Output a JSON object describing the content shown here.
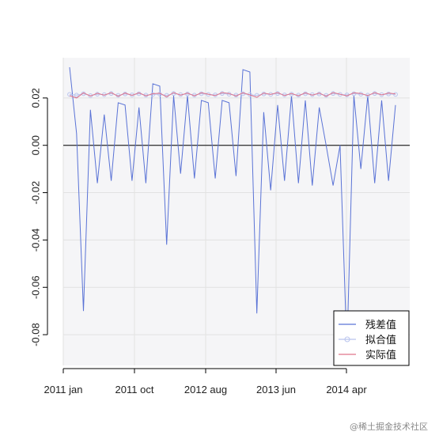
{
  "chart_data": {
    "type": "line",
    "title": "",
    "xlabel": "",
    "ylabel": "",
    "x_tick_labels": [
      "2011 jan",
      "2011 oct",
      "2012 aug",
      "2013 jun",
      "2014 apr"
    ],
    "y_ticks": [
      0.02,
      0.0,
      -0.02,
      -0.04,
      -0.06,
      -0.08
    ],
    "y_tick_labels": [
      "0.02",
      "0.00",
      "-0.02",
      "-0.04",
      "-0.06",
      "-0.08"
    ],
    "ylim": [
      -0.093,
      0.037
    ],
    "x_index_range": [
      0,
      47
    ],
    "grid": true,
    "zero_line": true,
    "legend_position": "bottom-right",
    "series": [
      {
        "name": "残差值",
        "color": "#5a73d6",
        "values": [
          0.033,
          0.005,
          -0.07,
          0.015,
          -0.016,
          0.013,
          -0.015,
          0.018,
          0.017,
          -0.015,
          0.016,
          -0.016,
          0.026,
          0.025,
          -0.042,
          0.021,
          -0.012,
          0.021,
          -0.014,
          0.019,
          0.018,
          -0.014,
          0.019,
          0.018,
          -0.013,
          0.032,
          0.031,
          -0.071,
          0.014,
          -0.019,
          0.017,
          -0.015,
          0.021,
          -0.016,
          0.019,
          -0.017,
          0.016,
          0.0,
          -0.017,
          0.0,
          -0.087,
          0.021,
          -0.01,
          0.021,
          -0.016,
          0.019,
          -0.015,
          0.017
        ]
      },
      {
        "name": "拟合值",
        "color": "#b9c4ee",
        "marker": "circle",
        "values": [
          0.0215,
          0.0212,
          0.0218,
          0.021,
          0.0216,
          0.0214,
          0.0219,
          0.0211,
          0.0217,
          0.0213,
          0.0218,
          0.0212,
          0.0215,
          0.0216,
          0.0211,
          0.0219,
          0.0214,
          0.0217,
          0.0212,
          0.0218,
          0.0215,
          0.0213,
          0.0219,
          0.0216,
          0.0212,
          0.0218,
          0.0214,
          0.0211,
          0.0217,
          0.0215,
          0.0219,
          0.0213,
          0.0216,
          0.0212,
          0.0218,
          0.0214,
          0.0217,
          0.0211,
          0.0219,
          0.0215,
          0.0213,
          0.0218,
          0.0216,
          0.0212,
          0.0219,
          0.0214,
          0.0217,
          0.0215
        ]
      },
      {
        "name": "实际值",
        "color": "#e0738a",
        "values": [
          0.021,
          0.02,
          0.0222,
          0.0208,
          0.022,
          0.0212,
          0.0223,
          0.0207,
          0.0221,
          0.0211,
          0.0222,
          0.0209,
          0.0218,
          0.022,
          0.0205,
          0.0223,
          0.0212,
          0.0221,
          0.0209,
          0.0222,
          0.0216,
          0.021,
          0.0223,
          0.0219,
          0.0208,
          0.0222,
          0.0213,
          0.0203,
          0.0221,
          0.0215,
          0.0223,
          0.021,
          0.0219,
          0.0209,
          0.0222,
          0.0212,
          0.0221,
          0.0207,
          0.0223,
          0.0216,
          0.0209,
          0.0222,
          0.0219,
          0.021,
          0.0223,
          0.0213,
          0.0221,
          0.0217
        ]
      }
    ]
  },
  "watermark": "@稀土掘金技术社区"
}
